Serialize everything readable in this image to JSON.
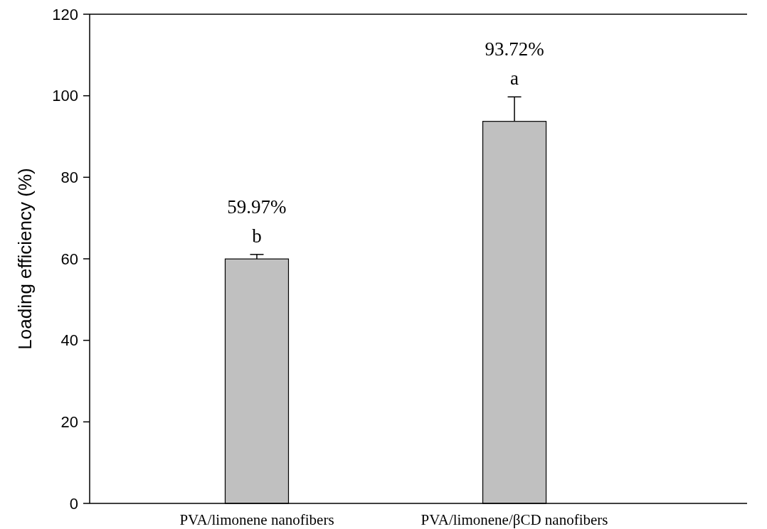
{
  "chart_data": {
    "type": "bar",
    "ylabel": "Loading efficiency (%)",
    "categories": [
      "PVA/limonene nanofibers",
      "PVA/limonene/βCD nanofibers"
    ],
    "values": [
      59.97,
      93.72
    ],
    "color": "#c0c0c0",
    "errors": [
      1.1,
      6
    ],
    "value_labels": [
      "59.97%",
      "93.72%"
    ],
    "annotations": [
      "b",
      "a"
    ],
    "ylim": [
      0,
      120
    ],
    "yticks": [
      0,
      20,
      40,
      60,
      80,
      100,
      120
    ],
    "grid": false
  }
}
